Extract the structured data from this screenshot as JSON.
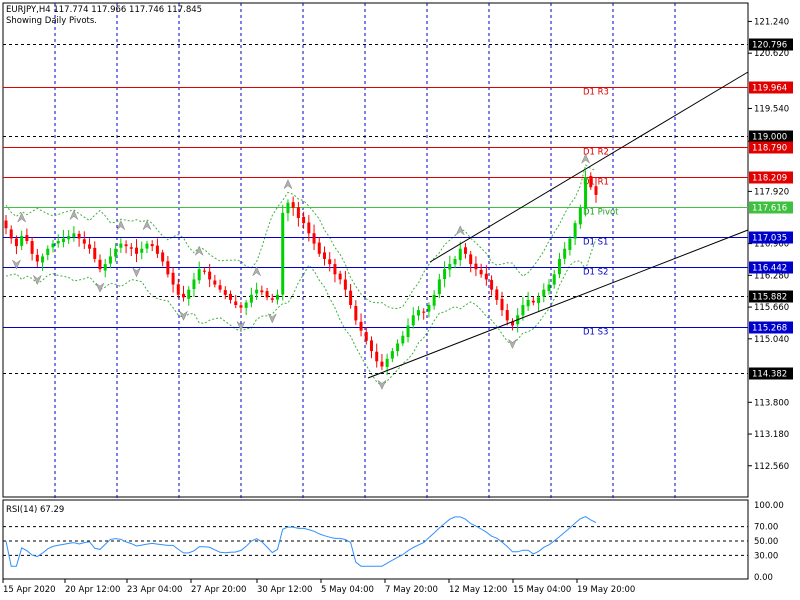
{
  "header": {
    "symbol": "EURJPY,H4",
    "ohlc": "117.774 117.966 117.746 117.845",
    "subtitle": "Showing Daily Pivots."
  },
  "rsi": {
    "label": "RSI(14) 67.29",
    "ticks": [
      "100.00",
      "70.00",
      "50.00",
      "30.00",
      "0.00"
    ]
  },
  "chart_data": {
    "type": "candlestick",
    "price_axis_ticks": [
      "121.240",
      "120.620",
      "119.540",
      "118.900",
      "117.920",
      "116.900",
      "116.280",
      "115.660",
      "115.040",
      "113.800",
      "113.180",
      "112.560"
    ],
    "time_axis_ticks": [
      "15 Apr 2020",
      "20 Apr 12:00",
      "23 Apr 04:00",
      "27 Apr 20:00",
      "30 Apr 12:00",
      "5 May 04:00",
      "7 May 20:00",
      "12 May 12:00",
      "15 May 04:00",
      "19 May 20:00"
    ],
    "ylim": [
      111.95,
      121.6
    ],
    "close_series": [
      117.2,
      117.0,
      116.85,
      117.05,
      116.95,
      116.7,
      116.55,
      116.65,
      116.8,
      116.9,
      116.95,
      117.0,
      117.05,
      117.1,
      117.0,
      116.9,
      116.8,
      116.6,
      116.4,
      116.5,
      116.65,
      116.8,
      116.9,
      116.85,
      116.8,
      116.7,
      116.8,
      116.9,
      116.85,
      116.7,
      116.55,
      116.3,
      116.1,
      115.9,
      115.85,
      116.0,
      116.2,
      116.4,
      116.35,
      116.2,
      116.1,
      116.0,
      115.9,
      115.8,
      115.7,
      115.65,
      115.75,
      115.9,
      116.0,
      115.95,
      115.85,
      115.8,
      115.9,
      117.5,
      117.7,
      117.6,
      117.4,
      117.3,
      117.1,
      116.9,
      116.7,
      116.6,
      116.5,
      116.3,
      116.2,
      116.0,
      115.7,
      115.4,
      115.2,
      115.0,
      114.8,
      114.6,
      114.5,
      114.65,
      114.8,
      114.95,
      115.1,
      115.3,
      115.5,
      115.6,
      115.55,
      115.7,
      115.9,
      116.2,
      116.4,
      116.5,
      116.6,
      116.8,
      116.7,
      116.5,
      116.4,
      116.3,
      116.2,
      116.0,
      115.8,
      115.6,
      115.4,
      115.3,
      115.5,
      115.7,
      115.8,
      115.75,
      115.85,
      116.0,
      116.1,
      116.3,
      116.6,
      116.8,
      117.0,
      117.3,
      117.6,
      118.2,
      118.0,
      117.85
    ],
    "horizontal_levels": [
      {
        "price": 120.796,
        "label": "120.796",
        "style": "dashed",
        "color": "#000000",
        "axis_bg": "#000000"
      },
      {
        "price": 119.964,
        "label": "119.964",
        "style": "solid",
        "color": "#e00000",
        "axis_bg": "#e00000",
        "tag": "D1 R3"
      },
      {
        "price": 119.0,
        "label": "119.000",
        "style": "dashed",
        "color": "#000000",
        "axis_bg": "#000000"
      },
      {
        "price": 118.79,
        "label": "118.790",
        "style": "solid",
        "color": "#e00000",
        "axis_bg": "#e00000",
        "tag": "D1 R2"
      },
      {
        "price": 118.209,
        "label": "118.209",
        "style": "solid",
        "color": "#e00000",
        "axis_bg": "#e00000",
        "tag": "D1 R1"
      },
      {
        "price": 117.616,
        "label": "117.616",
        "style": "solid",
        "color": "#40c040",
        "axis_bg": "#40c040",
        "tag": "D1 Pivot"
      },
      {
        "price": 117.035,
        "label": "117.035",
        "style": "solid",
        "color": "#0000cc",
        "axis_bg": "#0000cc",
        "tag": "D1 S1"
      },
      {
        "price": 116.442,
        "label": "116.442",
        "style": "solid",
        "color": "#0000cc",
        "axis_bg": "#0000cc",
        "tag": "D1 S2"
      },
      {
        "price": 115.882,
        "label": "115.882",
        "style": "dashed",
        "color": "#000000",
        "axis_bg": "#000000"
      },
      {
        "price": 115.268,
        "label": "115.268",
        "style": "solid",
        "color": "#0000cc",
        "axis_bg": "#0000cc",
        "tag": "D1 S3"
      },
      {
        "price": 114.382,
        "label": "114.382",
        "style": "dashed",
        "color": "#000000",
        "axis_bg": "#000000"
      }
    ],
    "colors": {
      "bull": "#00d000",
      "bear": "#ff0000",
      "grid": "#0000cc",
      "band": "#40b040",
      "rsi": "#3090ff"
    }
  }
}
